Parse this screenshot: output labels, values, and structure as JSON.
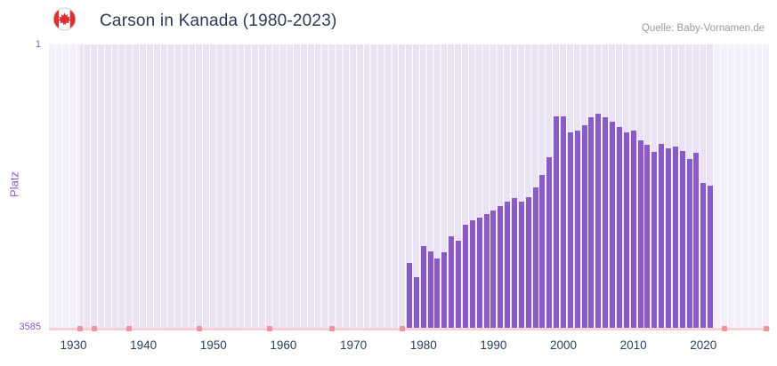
{
  "header": {
    "title": "Carson in Kanada (1980-2023)",
    "source": "Quelle: Baby-Vornamen.de",
    "flag_icon": "canada-flag-icon"
  },
  "chart_data": {
    "type": "bar",
    "title": "Carson in Kanada (1980-2023)",
    "xlabel": "",
    "ylabel": "Platz",
    "legend": "none",
    "grid": "vertical-white-stripes-per-year",
    "y_axis": {
      "inverted": true,
      "min": 1,
      "max": 3585,
      "top_label": "1",
      "bottom_label": "3585"
    },
    "x_axis": {
      "range": [
        1927,
        2030
      ],
      "ticks": [
        1930,
        1940,
        1950,
        1960,
        1970,
        1980,
        1990,
        2000,
        2010,
        2020
      ]
    },
    "series": [
      {
        "name": "Platz",
        "years": [
          1978,
          1979,
          1980,
          1981,
          1982,
          1983,
          1984,
          1985,
          1986,
          1987,
          1988,
          1989,
          1990,
          1991,
          1992,
          1993,
          1994,
          1995,
          1996,
          1997,
          1998,
          1999,
          2000,
          2001,
          2002,
          2003,
          2004,
          2005,
          2006,
          2007,
          2008,
          2009,
          2010,
          2011,
          2012,
          2013,
          2014,
          2015,
          2016,
          2017,
          2018,
          2019,
          2020,
          2021
        ],
        "ranks": [
          2760,
          2930,
          2540,
          2615,
          2705,
          2625,
          2420,
          2480,
          2275,
          2220,
          2185,
          2140,
          2095,
          2040,
          1985,
          1940,
          1985,
          1925,
          1805,
          1645,
          1420,
          905,
          905,
          1105,
          1085,
          1015,
          915,
          880,
          915,
          970,
          1040,
          1105,
          1085,
          1205,
          1265,
          1355,
          1250,
          1310,
          1285,
          1340,
          1445,
          1365,
          1745,
          1780
        ]
      }
    ],
    "no_rank_markers": {
      "years": [
        1931,
        1933,
        1938,
        1948,
        1958,
        1967,
        1977,
        2023,
        2029
      ]
    },
    "shaded_ranges": [
      {
        "from": 1927,
        "to": 1931.5
      },
      {
        "from": 2022,
        "to": 2030
      }
    ],
    "colors": {
      "bar": "#8a5bc7",
      "marker": "#ee94a0",
      "baseline": "#f7cfd6",
      "plot_background": "#e9e3f4",
      "gridline": "#ffffff",
      "axis_text": "#2a3f5f",
      "y_text": "#8a5bc7",
      "title_text": "#2b3a55",
      "source_text": "#9b9b9b"
    }
  }
}
